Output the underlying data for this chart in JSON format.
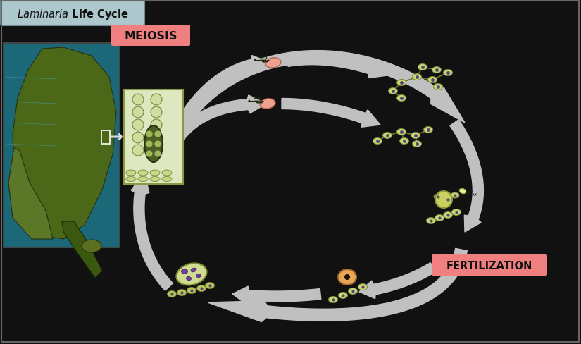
{
  "title": "Laminaria Life Cycle",
  "title_bg": "#adc8cc",
  "bg_color": "#111111",
  "meiosis_label": "MEIOSIS",
  "meiosis_bg": "#f08080",
  "fertilization_label": "FERTILIZATION",
  "fertilization_bg": "#f08080",
  "arrow_color": "#c0c0c0",
  "fig_width": 8.25,
  "fig_height": 4.89,
  "dpi": 100,
  "border_color": "#888888",
  "cell_green": "#c8d870",
  "cell_edge": "#7a8840",
  "purple": "#604080",
  "dark_green": "#3a5010",
  "light_green_bg": "#dce8b0",
  "photo_teal": "#2a8090"
}
